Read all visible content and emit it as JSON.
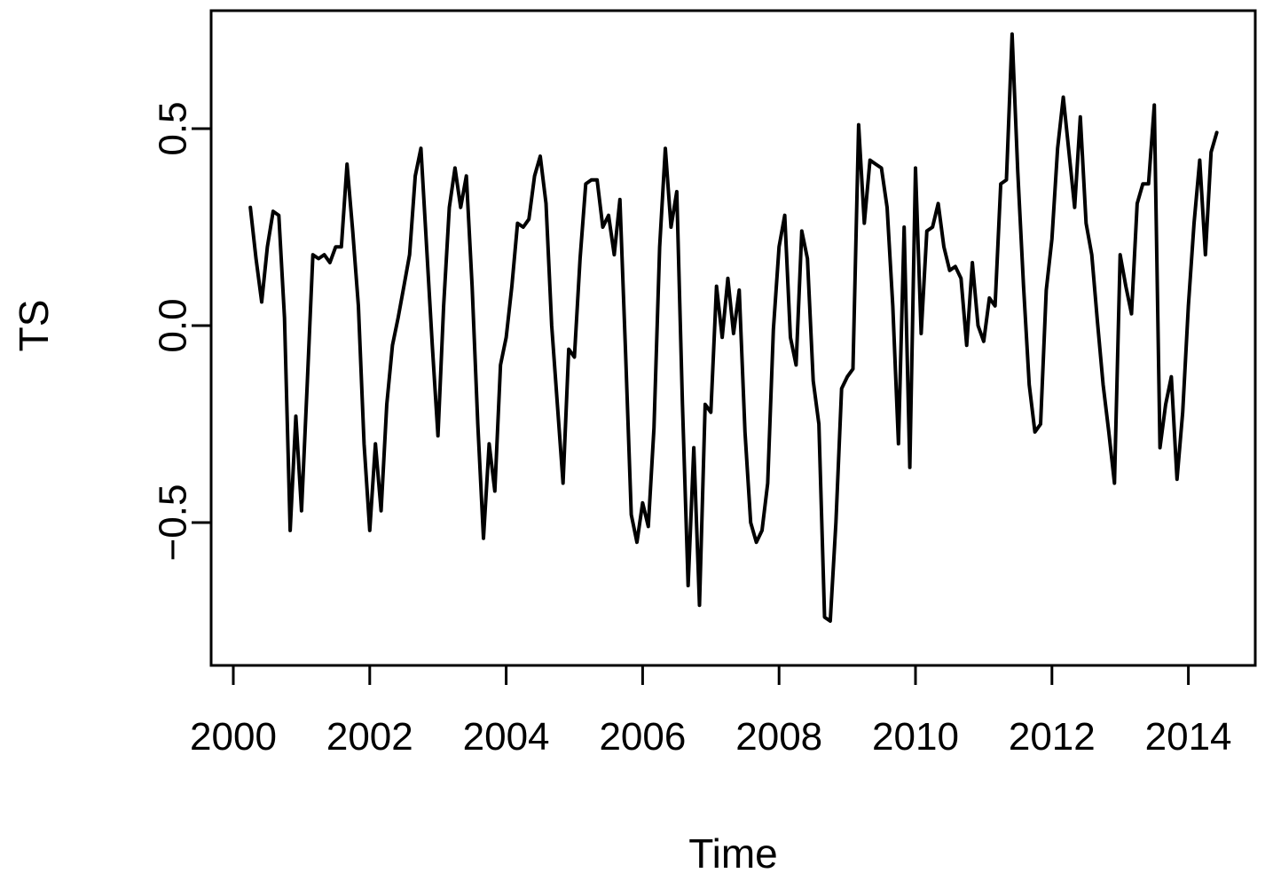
{
  "figure": {
    "background_color": "#ffffff",
    "line_color": "#000000",
    "axis_color": "#000000"
  },
  "chart_data": {
    "type": "line",
    "title": "",
    "xlabel": "Time",
    "ylabel": "TS",
    "grid": false,
    "legend": null,
    "xlim": [
      1999.67,
      2014.98
    ],
    "ylim": [
      -0.86,
      0.8
    ],
    "x_ticks": [
      2000,
      2002,
      2004,
      2006,
      2008,
      2010,
      2012,
      2014
    ],
    "x_tick_labels": [
      "2000",
      "2002",
      "2004",
      "2006",
      "2008",
      "2010",
      "2012",
      "2014"
    ],
    "y_ticks": [
      -0.5,
      0.0,
      0.5
    ],
    "y_tick_labels": [
      "−0.5",
      "0.0",
      "0.5"
    ],
    "series": [
      {
        "name": "TS",
        "frequency": 12,
        "start_time": 2000.25,
        "end_time": 2014.4167,
        "values": [
          0.3,
          0.17,
          0.06,
          0.2,
          0.29,
          0.28,
          0.02,
          -0.52,
          -0.23,
          -0.47,
          -0.15,
          0.18,
          0.17,
          0.18,
          0.16,
          0.2,
          0.2,
          0.41,
          0.24,
          0.05,
          -0.3,
          -0.52,
          -0.3,
          -0.47,
          -0.2,
          -0.05,
          0.02,
          0.1,
          0.18,
          0.38,
          0.45,
          0.2,
          -0.05,
          -0.28,
          0.05,
          0.3,
          0.4,
          0.3,
          0.38,
          0.1,
          -0.25,
          -0.54,
          -0.3,
          -0.42,
          -0.1,
          -0.03,
          0.1,
          0.26,
          0.25,
          0.27,
          0.38,
          0.43,
          0.31,
          0.0,
          -0.2,
          -0.4,
          -0.06,
          -0.08,
          0.17,
          0.36,
          0.37,
          0.37,
          0.25,
          0.28,
          0.18,
          0.32,
          -0.07,
          -0.48,
          -0.55,
          -0.45,
          -0.51,
          -0.26,
          0.2,
          0.45,
          0.25,
          0.34,
          -0.2,
          -0.66,
          -0.31,
          -0.71,
          -0.2,
          -0.22,
          0.1,
          -0.03,
          0.12,
          -0.02,
          0.09,
          -0.27,
          -0.5,
          -0.55,
          -0.52,
          -0.4,
          -0.01,
          0.2,
          0.28,
          -0.03,
          -0.1,
          0.24,
          0.17,
          -0.14,
          -0.25,
          -0.74,
          -0.75,
          -0.5,
          -0.16,
          -0.13,
          -0.11,
          0.51,
          0.26,
          0.42,
          0.41,
          0.4,
          0.3,
          0.05,
          -0.3,
          0.25,
          -0.36,
          0.4,
          -0.02,
          0.24,
          0.25,
          0.31,
          0.2,
          0.14,
          0.15,
          0.12,
          -0.05,
          0.16,
          0.0,
          -0.04,
          0.07,
          0.05,
          0.36,
          0.37,
          0.74,
          0.39,
          0.1,
          -0.15,
          -0.27,
          -0.25,
          0.09,
          0.22,
          0.45,
          0.58,
          0.44,
          0.3,
          0.53,
          0.26,
          0.18,
          0.01,
          -0.15,
          -0.27,
          -0.4,
          0.18,
          0.1,
          0.03,
          0.31,
          0.36,
          0.36,
          0.56,
          -0.31,
          -0.2,
          -0.13,
          -0.39,
          -0.22,
          0.05,
          0.26,
          0.42,
          0.18,
          0.44,
          0.49
        ]
      }
    ]
  }
}
